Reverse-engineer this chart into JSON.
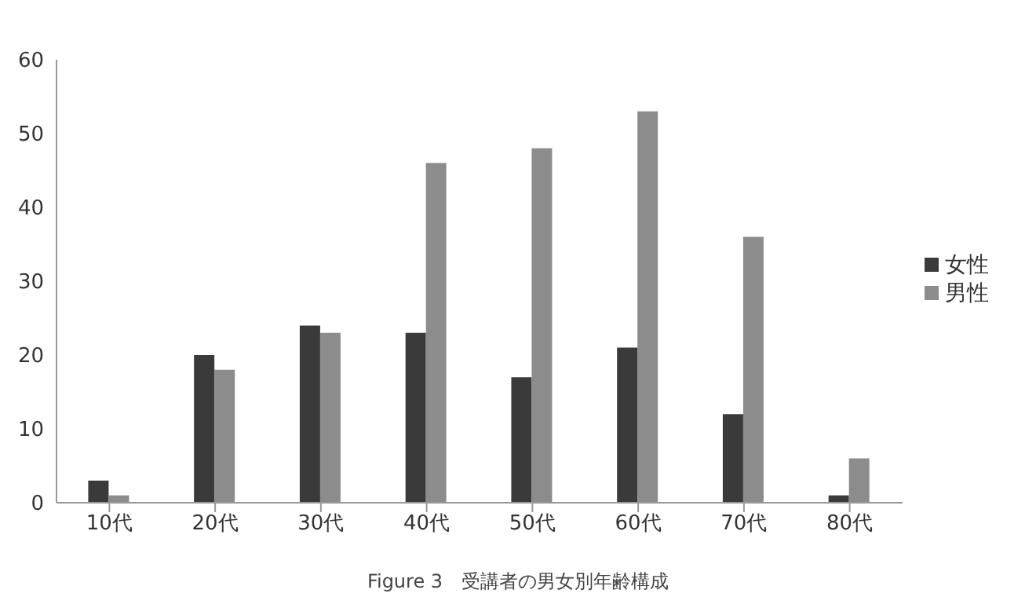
{
  "chart_data": {
    "type": "bar",
    "categories": [
      "10代",
      "20代",
      "30代",
      "40代",
      "50代",
      "60代",
      "70代",
      "80代"
    ],
    "series": [
      {
        "name": "女性",
        "color": "#3a3a3a",
        "values": [
          3,
          20,
          24,
          23,
          17,
          21,
          12,
          1
        ]
      },
      {
        "name": "男性",
        "color": "#8c8c8c",
        "values": [
          1,
          18,
          23,
          46,
          48,
          53,
          36,
          6
        ]
      }
    ],
    "ylim": [
      0,
      60
    ],
    "yticks": [
      0,
      10,
      20,
      30,
      40,
      50,
      60
    ],
    "grid": false,
    "legend": "right",
    "annotations": [
      "Figure 3　受講者の男女別年齢構成"
    ]
  }
}
